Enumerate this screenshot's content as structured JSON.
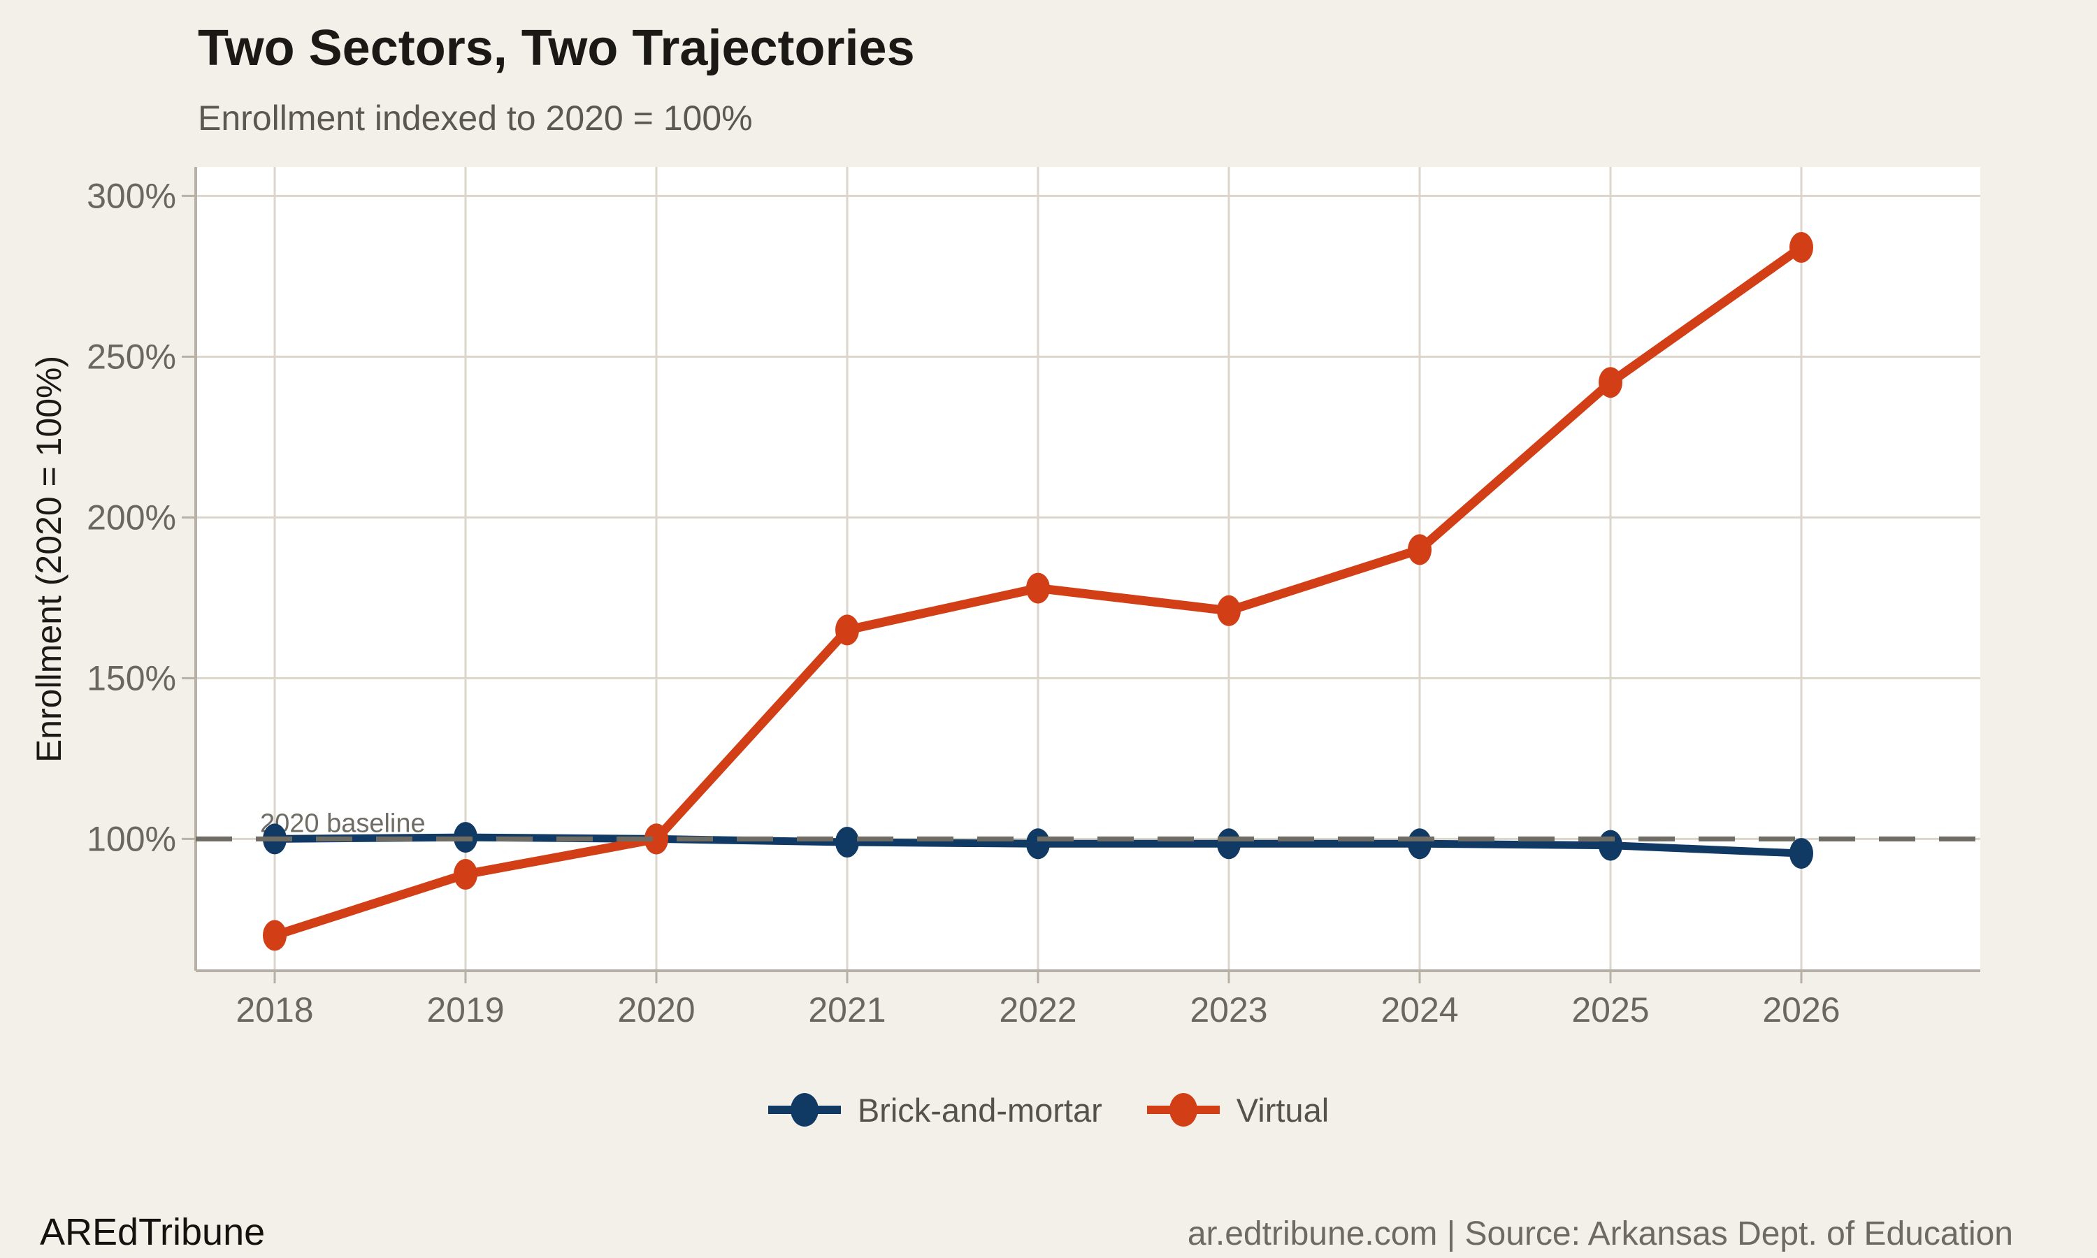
{
  "footer": {
    "brand": "AREdTribune",
    "source": "ar.edtribune.com | Source: Arkansas Dept. of Education"
  },
  "colors": {
    "background": "#f3f0ea",
    "panel": "#ffffff",
    "grid": "#dbd5cb",
    "axis": "#b6b0a6",
    "baseline_dash": "#6f6c64",
    "tick_label": "#6b6660",
    "annotation": "#6f6c64",
    "brick_navy": "#103a63",
    "virtual_orange": "#d23f16"
  },
  "chart_data": {
    "type": "line",
    "title": "Two Sectors, Two Trajectories",
    "subtitle": "Enrollment indexed to 2020 = 100%",
    "ylabel": "Enrollment (2020 = 100%)",
    "xlabel": "",
    "categories": [
      "2018",
      "2019",
      "2020",
      "2021",
      "2022",
      "2023",
      "2024",
      "2025",
      "2026"
    ],
    "series": [
      {
        "name": "Brick-and-mortar",
        "color": "#103a63",
        "values": [
          100,
          100.5,
          100,
          99,
          98.5,
          98.5,
          98.5,
          98,
          95.5
        ]
      },
      {
        "name": "Virtual",
        "color": "#d23f16",
        "values": [
          70,
          89,
          100,
          165,
          178,
          171,
          190,
          242,
          284
        ]
      }
    ],
    "y_ticks": [
      100,
      150,
      200,
      250,
      300
    ],
    "y_tick_labels": [
      "100%",
      "150%",
      "200%",
      "250%",
      "300%"
    ],
    "ylim": [
      59,
      309
    ],
    "grid": true,
    "legend_position": "bottom",
    "baseline": {
      "value": 100,
      "label": "2020 baseline"
    }
  }
}
